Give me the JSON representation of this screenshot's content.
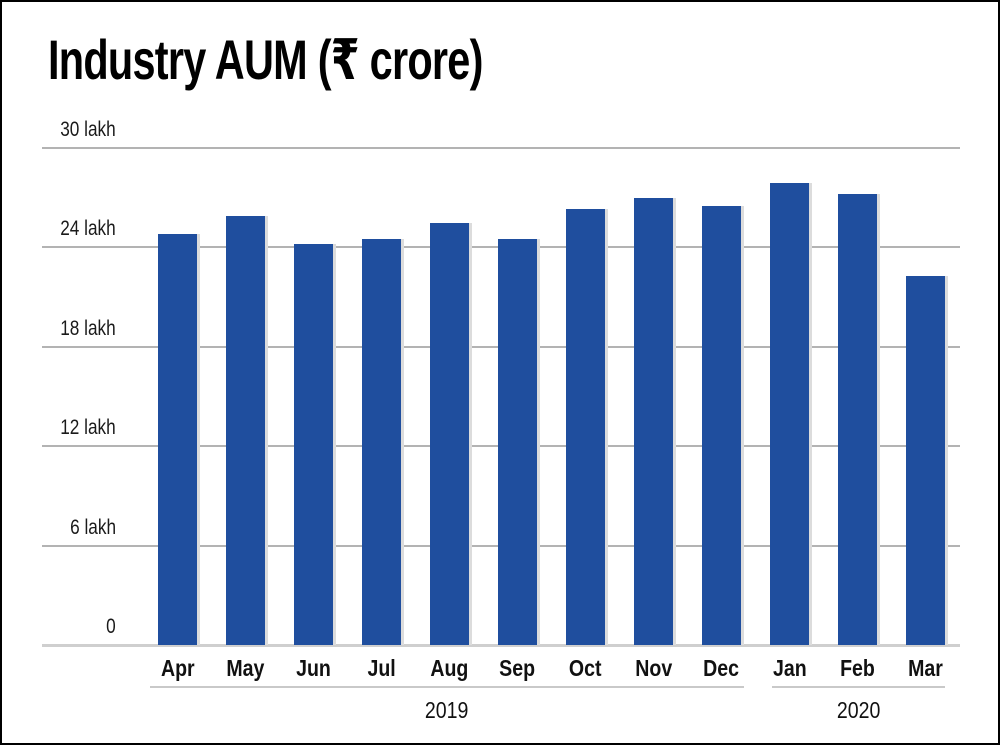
{
  "title": "Industry AUM (₹ crore)",
  "chart_data": {
    "type": "bar",
    "title": "Industry AUM (₹ crore)",
    "unit": "lakh crore",
    "categories": [
      "Apr",
      "May",
      "Jun",
      "Jul",
      "Aug",
      "Sep",
      "Oct",
      "Nov",
      "Dec",
      "Jan",
      "Feb",
      "Mar"
    ],
    "values": [
      24.8,
      25.9,
      24.2,
      24.5,
      25.5,
      24.5,
      26.3,
      27.0,
      26.5,
      27.9,
      27.2,
      22.3
    ],
    "year_groups": [
      {
        "label": "2019",
        "start_index": 0,
        "end_index": 8
      },
      {
        "label": "2020",
        "start_index": 9,
        "end_index": 11
      }
    ],
    "y_axis": {
      "range": [
        0,
        30
      ],
      "ticks": [
        {
          "value": 30,
          "label": "30 lakh"
        },
        {
          "value": 24,
          "label": "24 lakh"
        },
        {
          "value": 18,
          "label": "18 lakh"
        },
        {
          "value": 12,
          "label": "12 lakh"
        },
        {
          "value": 6,
          "label": "6 lakh"
        },
        {
          "value": 0,
          "label": "0"
        }
      ]
    },
    "grid": "horizontal",
    "legend": "none",
    "bar_color": "#1f4e9e",
    "gridline_color": "#b3b3b3",
    "title_color": "#000000"
  }
}
